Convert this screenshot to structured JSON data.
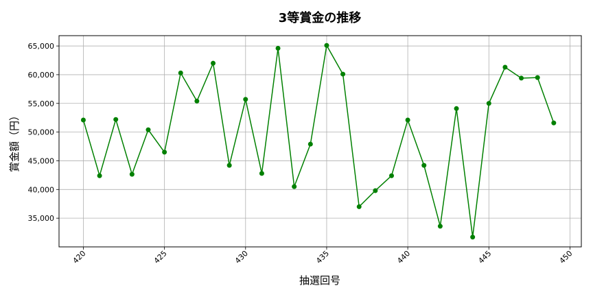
{
  "chart_data": {
    "type": "line",
    "title": "3等賞金の推移",
    "xlabel": "抽選回号",
    "ylabel": "賞金額（円）",
    "xlim": [
      418.5,
      450.7
    ],
    "ylim": [
      30000,
      66800
    ],
    "xticks": [
      420,
      425,
      430,
      435,
      440,
      445,
      450
    ],
    "yticks": [
      35000,
      40000,
      45000,
      50000,
      55000,
      60000,
      65000
    ],
    "ytick_labels": [
      "35,000",
      "40,000",
      "45,000",
      "50,000",
      "55,000",
      "60,000",
      "65,000"
    ],
    "grid": true,
    "color": "#008000",
    "marker": "circle",
    "series": [
      {
        "x": [
          420,
          421,
          422,
          423,
          424,
          425,
          426,
          427,
          428,
          429,
          430,
          431,
          432,
          433,
          434,
          435,
          436,
          437,
          438,
          439,
          440,
          441,
          442,
          443,
          444,
          445,
          446,
          447,
          448,
          449
        ],
        "values": [
          52100,
          42400,
          52200,
          42650,
          50400,
          46500,
          60300,
          55400,
          62000,
          44200,
          55700,
          42800,
          64600,
          40500,
          47900,
          65100,
          60100,
          37000,
          39800,
          42400,
          52100,
          44200,
          33600,
          54100,
          31700,
          55000,
          61300,
          59400,
          59500,
          51600
        ]
      }
    ]
  }
}
